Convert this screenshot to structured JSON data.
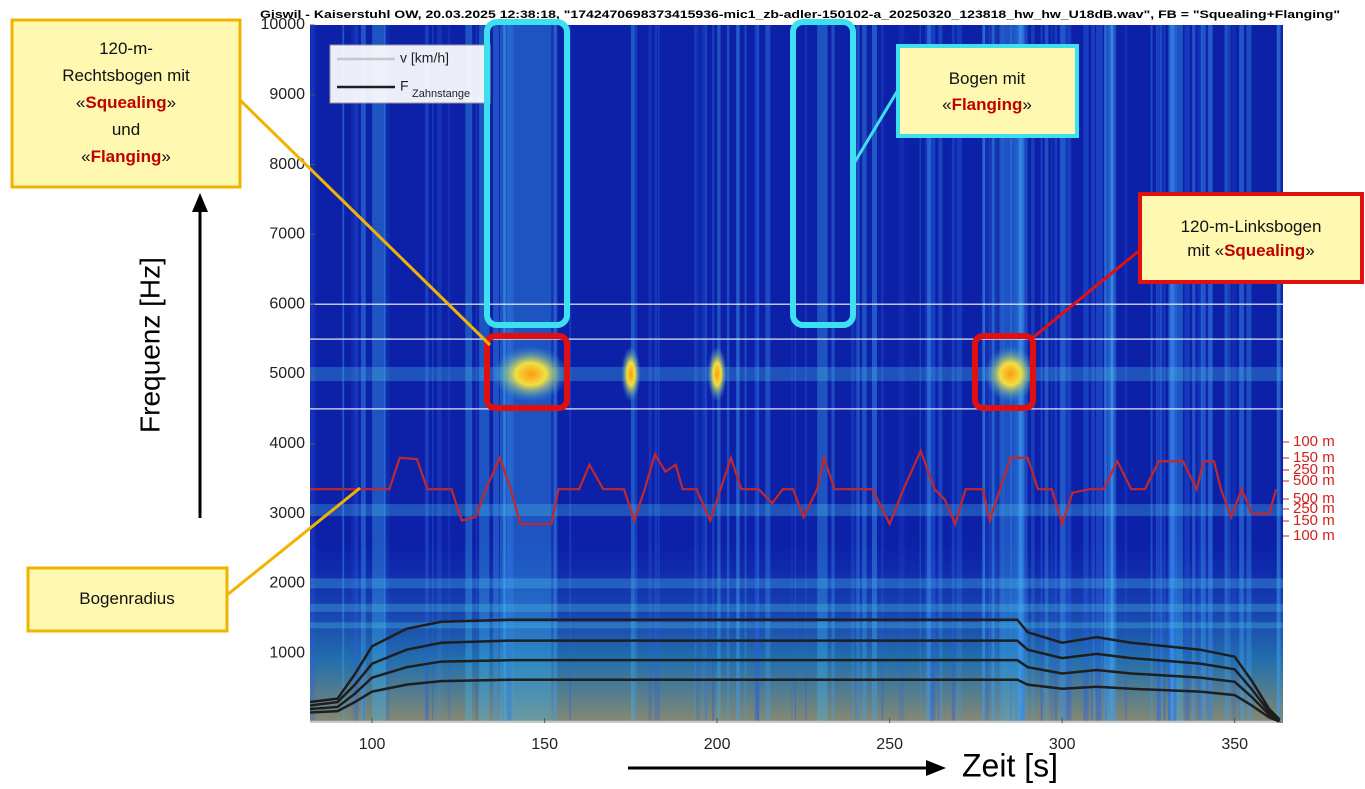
{
  "chart_data": {
    "type": "spectrogram",
    "title": "Giswil - Kaiserstuhl OW, 20.03.2025 12:38:18, \"1742470698373415936-mic1_zb-adler-150102-a_20250320_123818_hw_hw_U18dB.wav\", FB = \"Squealing+Flanging\"",
    "xlabel": "Zeit [s]",
    "ylabel": "Frequenz [Hz]",
    "xlim": [
      82,
      364
    ],
    "ylim": [
      0,
      10000
    ],
    "xticks": [
      100,
      150,
      200,
      250,
      300,
      350
    ],
    "yticks": [
      1000,
      2000,
      3000,
      4000,
      5000,
      6000,
      7000,
      8000,
      9000,
      10000
    ],
    "y2lim": [
      0,
      10000
    ],
    "y2ticks": [
      {
        "value": 4026,
        "label": "100 m"
      },
      {
        "value": 3797,
        "label": "150 m"
      },
      {
        "value": 3625,
        "label": "250 m"
      },
      {
        "value": 3467,
        "label": "500 m"
      },
      {
        "value": 3209,
        "label": "500 m"
      },
      {
        "value": 3066,
        "label": "250 m"
      },
      {
        "value": 2894,
        "label": "150 m"
      },
      {
        "value": 2679,
        "label": "100 m"
      }
    ],
    "ref_lines": [
      6000,
      5500,
      4500
    ],
    "x": [
      82,
      90,
      95,
      100,
      110,
      120,
      140,
      287,
      290,
      300,
      310,
      320,
      340,
      350,
      355,
      360,
      363
    ],
    "series": [
      {
        "name": "v [km/h]",
        "color": "#c8c8c8",
        "curves": [
          [
            15,
            15,
            15,
            15,
            15,
            15,
            15,
            15,
            15,
            15,
            15,
            15,
            15,
            15,
            15,
            15,
            15
          ]
        ]
      },
      {
        "name": "F",
        "name_sub": "Zahnstange",
        "color": "#1e1e1e",
        "curves": [
          [
            300,
            350,
            700,
            1100,
            1350,
            1450,
            1480,
            1480,
            1300,
            1150,
            1230,
            1150,
            1050,
            950,
            600,
            200,
            50
          ],
          [
            250,
            300,
            550,
            850,
            1050,
            1150,
            1180,
            1180,
            1050,
            930,
            990,
            930,
            850,
            770,
            480,
            160,
            40
          ],
          [
            200,
            230,
            420,
            650,
            800,
            880,
            900,
            900,
            800,
            710,
            760,
            710,
            650,
            590,
            370,
            120,
            30
          ],
          [
            150,
            170,
            300,
            450,
            550,
            600,
            620,
            620,
            550,
            490,
            520,
            490,
            450,
            400,
            250,
            80,
            20
          ]
        ]
      }
    ],
    "radius_curve": {
      "color": "#c0282d",
      "x": [
        82,
        105,
        108,
        113,
        116,
        123,
        126,
        130,
        133,
        137,
        140,
        143,
        152,
        154,
        160,
        163,
        167,
        173,
        176,
        179,
        182,
        185,
        188,
        190,
        194,
        198,
        201,
        204,
        207,
        212,
        216,
        219,
        222,
        225,
        229,
        231,
        234,
        245,
        250,
        254,
        259,
        263,
        266,
        269,
        272,
        277,
        279,
        282,
        285,
        290,
        293,
        297,
        300,
        303,
        308,
        312,
        316,
        320,
        324,
        328,
        335,
        339,
        341,
        344,
        346,
        349,
        352,
        355,
        360,
        362
      ],
      "values": [
        3350,
        3350,
        3800,
        3780,
        3350,
        3350,
        2900,
        2950,
        3350,
        3800,
        3380,
        2850,
        2850,
        3350,
        3350,
        3700,
        3350,
        3350,
        2900,
        3350,
        3850,
        3600,
        3700,
        3350,
        3350,
        2900,
        3350,
        3800,
        3350,
        3350,
        3150,
        3350,
        3350,
        2950,
        3350,
        3800,
        3350,
        3350,
        2850,
        3350,
        3900,
        3350,
        3200,
        2850,
        3350,
        3350,
        2900,
        3350,
        3800,
        3800,
        3350,
        3350,
        2850,
        3300,
        3350,
        3350,
        3750,
        3350,
        3350,
        3750,
        3750,
        3350,
        3750,
        3750,
        3350,
        2950,
        3350,
        3000,
        3000,
        3350
      ]
    },
    "annotations": [
      {
        "lines": [
          [
            "120-m-"
          ],
          [
            "Rechtsbogen mit"
          ],
          [
            "«",
            "Squealing",
            "»"
          ],
          [
            "und"
          ],
          [
            "«",
            "Flanging",
            "»"
          ]
        ]
      },
      {
        "lines": [
          [
            "Bogen mit"
          ],
          [
            "«",
            "Flanging",
            "»"
          ]
        ]
      },
      {
        "lines": [
          [
            "120-m-Linksbogen"
          ],
          [
            "mit «",
            "Squealing",
            "»"
          ]
        ]
      },
      {
        "lines": [
          [
            "Bogenradius"
          ]
        ]
      }
    ]
  }
}
